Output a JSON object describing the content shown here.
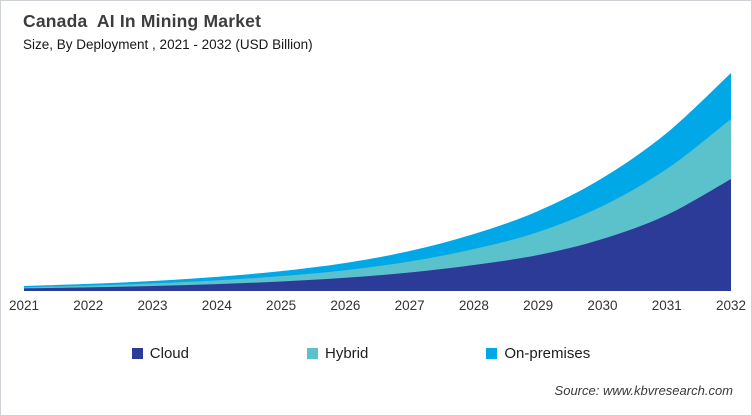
{
  "header": {
    "title": "Canada  AI In Mining Market",
    "subtitle": "Size, By Deployment , 2021 - 2032 (USD Billion)"
  },
  "chart_data": {
    "type": "area",
    "stacked": true,
    "title": "Canada AI In Mining Market",
    "subtitle": "Size, By Deployment , 2021 - 2032 (USD Billion)",
    "xlabel": "",
    "ylabel": "",
    "units": "USD Billion (relative scale; no y-axis labels shown in figure)",
    "grid": false,
    "y_axis_visible": false,
    "legend_position": "bottom",
    "categories": [
      "2021",
      "2022",
      "2023",
      "2024",
      "2025",
      "2026",
      "2027",
      "2028",
      "2029",
      "2030",
      "2031",
      "2032"
    ],
    "series": [
      {
        "name": "Cloud",
        "color": "#2b3b97",
        "values": [
          2.6,
          3.6,
          5.0,
          6.9,
          9.5,
          13.2,
          18.5,
          26.0,
          36.0,
          52.0,
          76.0,
          112.0
        ]
      },
      {
        "name": "Hybrid",
        "color": "#5bc2cb",
        "values": [
          1.2,
          1.8,
          2.6,
          3.7,
          5.4,
          7.6,
          11.0,
          16.0,
          23.0,
          33.0,
          46.0,
          60.0
        ]
      },
      {
        "name": "On-premises",
        "color": "#00a8e8",
        "values": [
          1.2,
          1.7,
          2.4,
          3.5,
          5.0,
          7.2,
          10.5,
          15.0,
          21.0,
          28.0,
          36.0,
          46.0
        ]
      }
    ],
    "ylim": [
      0,
      230
    ]
  },
  "footer": {
    "source": "Source: www.kbvresearch.com"
  }
}
